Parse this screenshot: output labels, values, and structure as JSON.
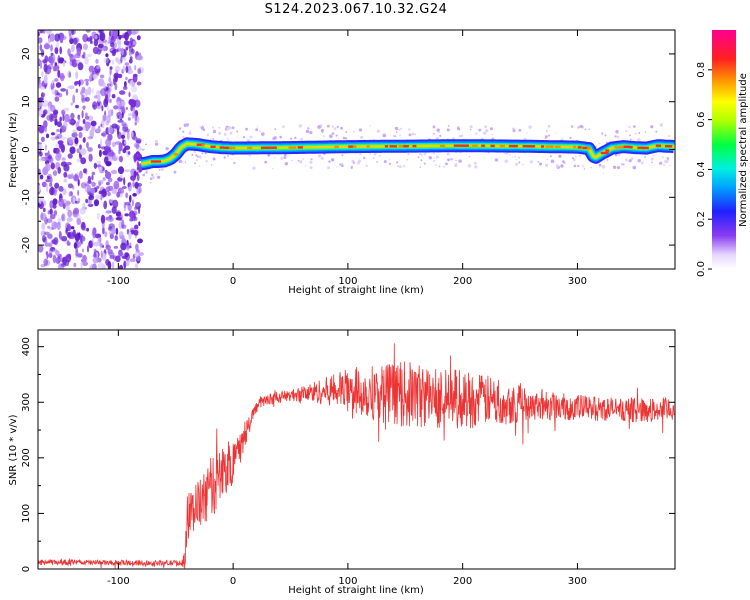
{
  "figure": {
    "title": "S124.2023.067.10.32.G24"
  },
  "chart_data": [
    {
      "type": "heatmap",
      "xlabel": "Height of straight line (km)",
      "ylabel": "Frequency (Hz)",
      "xlim": [
        -170,
        385
      ],
      "ylim": [
        -25,
        25
      ],
      "xticks": [
        -100,
        0,
        100,
        200,
        300
      ],
      "yticks": [
        -20,
        -10,
        0,
        10,
        20
      ],
      "colorbar": {
        "label": "Normalized spectral amplitude",
        "ticks": [
          0.0,
          0.2,
          0.4,
          0.6,
          0.8
        ],
        "range": [
          0.0,
          0.96
        ],
        "colormap": "rainbow (white-violet-blue-cyan-green-yellow-orange-red-magenta)"
      },
      "noise_region": {
        "x_start": -170,
        "x_end": -80,
        "description_color": "#6a1fd0"
      },
      "ridge": {
        "x": [
          -80,
          -75,
          -70,
          -65,
          -60,
          -55,
          -50,
          -45,
          -40,
          -30,
          -20,
          -10,
          0,
          50,
          100,
          150,
          200,
          250,
          300,
          310,
          315,
          320,
          330,
          340,
          350,
          360,
          370,
          385
        ],
        "y": [
          -3,
          -2.8,
          -2.5,
          -2.5,
          -2.4,
          -2,
          -1,
          0.5,
          1.2,
          1.0,
          0.6,
          0.4,
          0.3,
          0.4,
          0.6,
          0.7,
          0.8,
          0.7,
          0.5,
          0.2,
          -1.8,
          -1.0,
          0.3,
          0.6,
          0.4,
          0.3,
          0.8,
          0.6
        ]
      },
      "grid": false
    },
    {
      "type": "line",
      "xlabel": "Height of straight line (km)",
      "ylabel": "SNR (10 * v/v)",
      "xlim": [
        -170,
        385
      ],
      "ylim": [
        0,
        430
      ],
      "xticks": [
        -100,
        0,
        100,
        200,
        300
      ],
      "yticks": [
        0,
        100,
        200,
        300,
        400
      ],
      "color": "#ee3333",
      "series": [
        {
          "x": [
            -170,
            -140,
            -110,
            -80,
            -60,
            -50,
            -45,
            -42,
            -40,
            -35,
            -30,
            -25,
            -20,
            -15,
            -10,
            -5,
            0,
            5,
            10,
            15,
            20,
            25,
            30,
            40,
            50,
            60,
            70,
            80,
            90,
            100,
            110,
            120,
            130,
            140,
            150,
            160,
            170,
            180,
            190,
            200,
            210,
            220,
            230,
            240,
            250,
            260,
            270,
            280,
            290,
            300,
            310,
            320,
            330,
            340,
            350,
            360,
            370,
            385
          ],
          "y": [
            12,
            12,
            11,
            11,
            11,
            11,
            10,
            20,
            90,
            110,
            115,
            125,
            145,
            155,
            170,
            180,
            200,
            215,
            240,
            270,
            290,
            300,
            305,
            310,
            312,
            315,
            318,
            320,
            322,
            322,
            320,
            318,
            318,
            316,
            314,
            312,
            310,
            308,
            308,
            306,
            304,
            304,
            302,
            300,
            300,
            298,
            296,
            294,
            292,
            290,
            290,
            288,
            288,
            287,
            286,
            286,
            286,
            288
          ],
          "noise": [
            5,
            5,
            5,
            5,
            5,
            5,
            5,
            20,
            40,
            45,
            45,
            50,
            55,
            55,
            55,
            50,
            45,
            35,
            25,
            15,
            10,
            10,
            10,
            10,
            10,
            15,
            20,
            25,
            30,
            40,
            45,
            50,
            55,
            55,
            60,
            60,
            55,
            55,
            55,
            55,
            50,
            45,
            45,
            40,
            35,
            30,
            30,
            25,
            25,
            25,
            22,
            22,
            22,
            22,
            22,
            22,
            22,
            22
          ]
        }
      ],
      "grid": false
    }
  ]
}
